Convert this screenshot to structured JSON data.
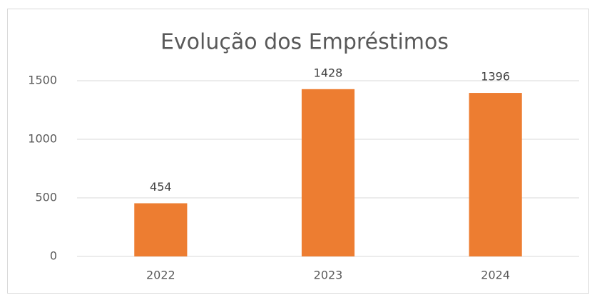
{
  "chart_data": {
    "type": "bar",
    "title": "Evolução dos Empréstimos",
    "categories": [
      "2022",
      "2023",
      "2024"
    ],
    "values": [
      454,
      1428,
      1396
    ],
    "color": "#ed7d31",
    "ylim": [
      0,
      1500
    ],
    "yticks": [
      0,
      500,
      1000,
      1500
    ],
    "grid": true,
    "data_labels": true
  }
}
